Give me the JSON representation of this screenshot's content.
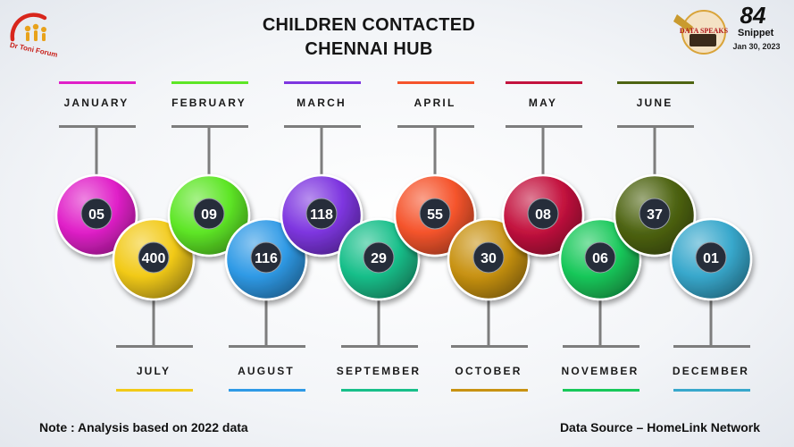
{
  "header": {
    "title_line1": "CHILDREN CONTACTED",
    "title_line2": "CHENNAI HUB",
    "logo_left_text": "Dr Toni Forum",
    "logo_right_text": "DATA SPEAKS",
    "snippet_number": "84",
    "snippet_label": "Snippet",
    "date": "Jan 30, 2023"
  },
  "footer": {
    "note": "Note : Analysis based on 2022 data",
    "source": "Data Source – HomeLink Network"
  },
  "colors": {
    "Jan": "#e020c8",
    "Feb": "#5ee626",
    "Mar": "#7e36e0",
    "Apr": "#f5542c",
    "May": "#c3123e",
    "Jun": "#4e6412",
    "Jul": "#f2ca18",
    "Aug": "#2f9ae6",
    "Sep": "#18bf8a",
    "Oct": "#c89212",
    "Nov": "#18c85a",
    "Dec": "#38a8cc",
    "connector": "#7d7d7d",
    "badge": "#262d3a"
  },
  "chart_data": {
    "type": "table",
    "categories": [
      "JANUARY",
      "FEBRUARY",
      "MARCH",
      "APRIL",
      "MAY",
      "JUNE",
      "JULY",
      "AUGUST",
      "SEPTEMBER",
      "OCTOBER",
      "NOVEMBER",
      "DECEMBER"
    ],
    "series": [
      {
        "values": [
          5,
          9,
          118,
          55,
          8,
          37,
          400,
          116,
          29,
          30,
          6,
          1
        ]
      }
    ],
    "value_labels": [
      "05",
      "09",
      "118",
      "55",
      "08",
      "37",
      "400",
      "116",
      "29",
      "30",
      "06",
      "01"
    ],
    "legend": "none",
    "grid": false
  }
}
